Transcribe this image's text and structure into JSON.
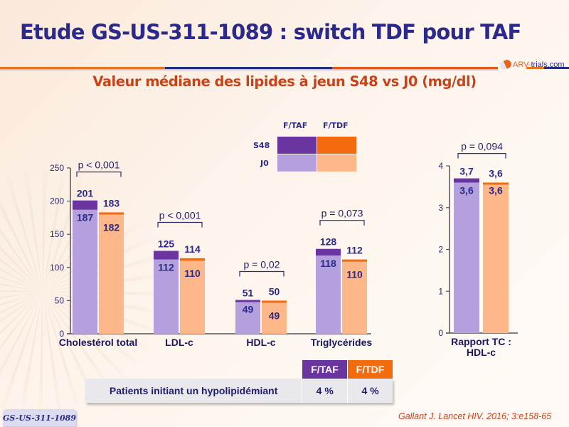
{
  "header": {
    "title": "Etude GS-US-311-1089 : switch TDF pour TAF",
    "logo_prefix": "ARV-",
    "logo_main": "trials",
    "logo_suffix": ".com",
    "subtitle": "Valeur médiane des lipides à jeun S48 vs J0 (mg/dl)"
  },
  "colors": {
    "taf_s48": "#6a35a0",
    "taf_j0": "#b3a0dc",
    "tdf_s48": "#f26b0f",
    "tdf_j0": "#fdb788",
    "text_dark": "#2b2a8c",
    "accent_orange": "#c8431a"
  },
  "legend": {
    "columns": [
      "F/TAF",
      "F/TDF"
    ],
    "rows": [
      "S48",
      "J0"
    ]
  },
  "chart_data": [
    {
      "type": "bar",
      "title": "Valeur médiane des lipides à jeun S48 vs J0 (mg/dl)",
      "categories": [
        "Cholestérol total",
        "LDL-c",
        "HDL-c",
        "Triglycérides"
      ],
      "series": [
        {
          "name": "F/TAF J0",
          "values": [
            187,
            112,
            49,
            118
          ]
        },
        {
          "name": "F/TAF S48",
          "values": [
            201,
            125,
            51,
            128
          ]
        },
        {
          "name": "F/TDF J0",
          "values": [
            182,
            110,
            49,
            110
          ]
        },
        {
          "name": "F/TDF S48",
          "values": [
            183,
            114,
            50,
            112
          ]
        }
      ],
      "p_values": [
        "p < 0,001",
        "p < 0,001",
        "p = 0,02",
        "p = 0,073"
      ],
      "yticks": [
        0,
        50,
        100,
        150,
        200,
        250
      ],
      "ylim": [
        0,
        250
      ],
      "xlabel": "",
      "ylabel": "",
      "grid": false
    },
    {
      "type": "bar",
      "title": "",
      "categories": [
        "Rapport TC : HDL-c"
      ],
      "series": [
        {
          "name": "F/TAF J0",
          "values": [
            3.6
          ],
          "labels": [
            "3,6"
          ]
        },
        {
          "name": "F/TAF S48",
          "values": [
            3.7
          ],
          "labels": [
            "3,7"
          ]
        },
        {
          "name": "F/TDF J0",
          "values": [
            3.6
          ],
          "labels": [
            "3,6"
          ]
        },
        {
          "name": "F/TDF S48",
          "values": [
            3.6
          ],
          "labels": [
            "3,6"
          ]
        }
      ],
      "p_values": [
        "p = 0,094"
      ],
      "yticks": [
        0,
        1,
        2,
        3,
        4
      ],
      "ylim": [
        0,
        4
      ],
      "category_label_lines": [
        "Rapport TC :",
        "HDL-c"
      ],
      "grid": false
    }
  ],
  "hypolipidemic_table": {
    "headers": [
      "F/TAF",
      "F/TDF"
    ],
    "row_label": "Patients initiant un hypolipidémiant",
    "values": [
      "4 %",
      "4 %"
    ]
  },
  "study_badge": "GS-US-311-1089",
  "reference": "Gallant J. Lancet HIV. 2016; 3:e158-65"
}
